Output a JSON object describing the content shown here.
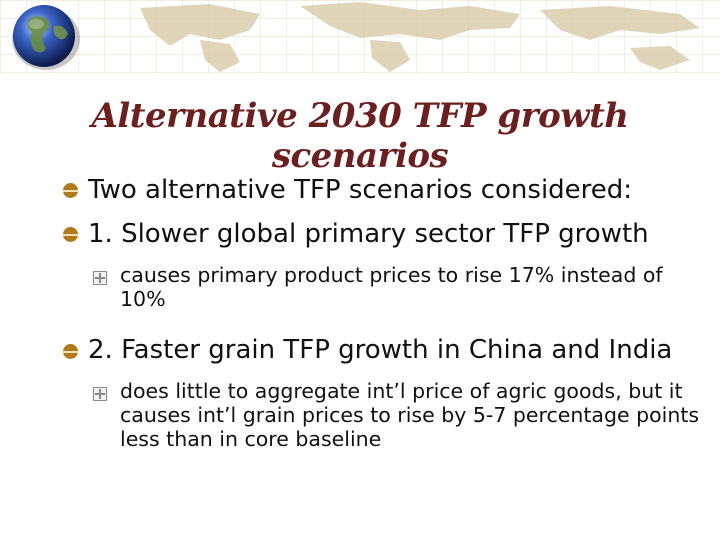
{
  "slide": {
    "title": "Alternative 2030 TFP growth scenarios",
    "bullets": [
      {
        "text": "Two alternative TFP scenarios considered:"
      },
      {
        "text": "1. Slower global primary sector TFP growth",
        "sub": [
          "causes primary product prices to rise 17% instead of 10%"
        ]
      },
      {
        "text": "2. Faster grain TFP growth in China and India",
        "sub": [
          "does little to aggregate int’l price of agric goods, but it causes int’l grain prices to rise by 5-7 percentage points less than in core baseline"
        ]
      }
    ]
  },
  "colors": {
    "title": "#6b1f1f",
    "bullet": "#b07a1c",
    "banner_grid": "#e6dcc6",
    "map": "#ddd0b2"
  },
  "icons": {
    "logo": "globe-icon",
    "level1": "bullet-disc-icon",
    "level2": "bullet-plus-box-icon"
  }
}
